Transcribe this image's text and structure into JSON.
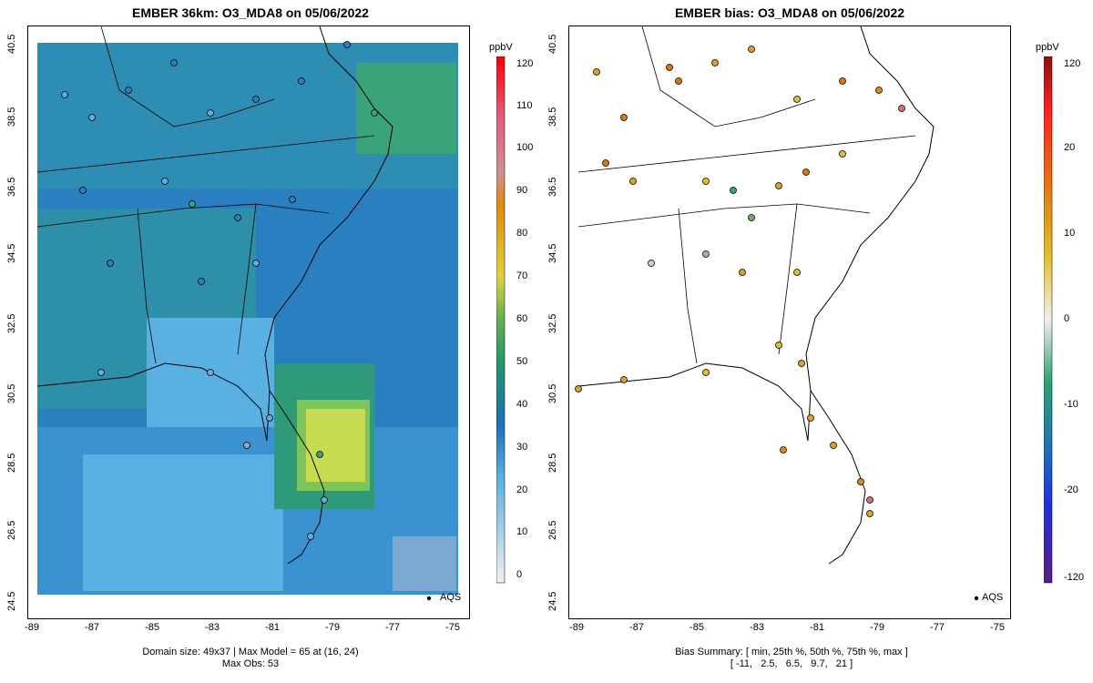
{
  "left_panel": {
    "title": "EMBER 36km: O3_MDA8 on 05/06/2022",
    "colorbar_unit": "ppbV",
    "colorbar_ticks": [
      "120",
      "110",
      "100",
      "90",
      "80",
      "70",
      "60",
      "50",
      "40",
      "30",
      "20",
      "10",
      "0"
    ],
    "legend_label": "AQS",
    "footer_line1": "Domain size: 49x37 | Max Model = 65 at (16, 24)",
    "footer_line2": "Max Obs: 53",
    "colors": {
      "low": "#5aaee0",
      "mid": "#1f6fb8",
      "high": "#3aa56a",
      "peak": "#cfe04a"
    }
  },
  "right_panel": {
    "title": "EMBER bias: O3_MDA8 on 05/06/2022",
    "colorbar_unit": "ppbV",
    "colorbar_ticks": [
      "120",
      "20",
      "10",
      "0",
      "-10",
      "-20",
      "-120"
    ],
    "legend_label": "AQS",
    "footer_line1": "Bias Summary: [ min, 25th %, 50th %, 75th %, max ]",
    "footer_line2": "[ -11,   2.5,   6.5,   9.7,   21 ]"
  },
  "axes": {
    "y_ticks": [
      "40.5",
      "38.5",
      "36.5",
      "34.5",
      "32.5",
      "30.5",
      "28.5",
      "26.5",
      "24.5"
    ],
    "x_ticks": [
      "-89",
      "-87",
      "-85",
      "-83",
      "-81",
      "-79",
      "-77",
      "-75"
    ]
  }
}
